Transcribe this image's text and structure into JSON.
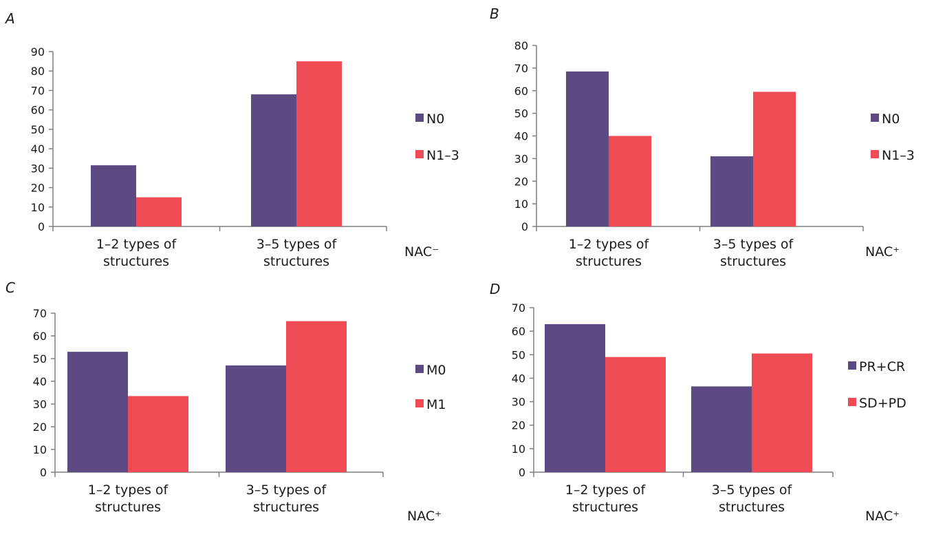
{
  "chart_data": [
    {
      "panel": "A",
      "type": "bar",
      "categories": [
        "1–2 types of structures",
        "3–5 types of structures"
      ],
      "series": [
        {
          "name": "N0",
          "values": [
            31.5,
            68
          ]
        },
        {
          "name": "N1–3",
          "values": [
            15,
            85
          ]
        }
      ],
      "ylim": [
        0,
        90
      ],
      "yticks": [
        0,
        10,
        20,
        30,
        40,
        50,
        60,
        70,
        80,
        90
      ],
      "xlabel": "NAC⁻",
      "ylabel": "",
      "title": "",
      "legend_position": "right"
    },
    {
      "panel": "B",
      "type": "bar",
      "categories": [
        "1–2 types of structures",
        "3–5 types of structures"
      ],
      "series": [
        {
          "name": "N0",
          "values": [
            68.5,
            31
          ]
        },
        {
          "name": "N1–3",
          "values": [
            40,
            59.5
          ]
        }
      ],
      "ylim": [
        0,
        80
      ],
      "yticks": [
        0,
        10,
        20,
        30,
        40,
        50,
        60,
        70,
        80
      ],
      "xlabel": "NAC⁺",
      "ylabel": "",
      "title": "",
      "legend_position": "right"
    },
    {
      "panel": "C",
      "type": "bar",
      "categories": [
        "1–2 types of structures",
        "3–5 types of structures"
      ],
      "series": [
        {
          "name": "M0",
          "values": [
            53,
            47
          ]
        },
        {
          "name": "M1",
          "values": [
            33.5,
            66.5
          ]
        }
      ],
      "ylim": [
        0,
        70
      ],
      "yticks": [
        0,
        10,
        20,
        30,
        40,
        50,
        60,
        70
      ],
      "xlabel": "NAC⁺",
      "ylabel": "",
      "title": "",
      "legend_position": "right"
    },
    {
      "panel": "D",
      "type": "bar",
      "categories": [
        "1–2 types of structures",
        "3–5 types of structures"
      ],
      "series": [
        {
          "name": "PR+CR",
          "values": [
            63,
            36.5
          ]
        },
        {
          "name": "SD+PD",
          "values": [
            49,
            50.5
          ]
        }
      ],
      "ylim": [
        0,
        70
      ],
      "yticks": [
        0,
        10,
        20,
        30,
        40,
        50,
        60,
        70
      ],
      "xlabel": "NAC⁺",
      "ylabel": "",
      "title": "",
      "legend_position": "right"
    }
  ],
  "colors": {
    "series_1": "#5e4a83",
    "series_2": "#ee4b55",
    "axis": "#7f7f7f"
  }
}
